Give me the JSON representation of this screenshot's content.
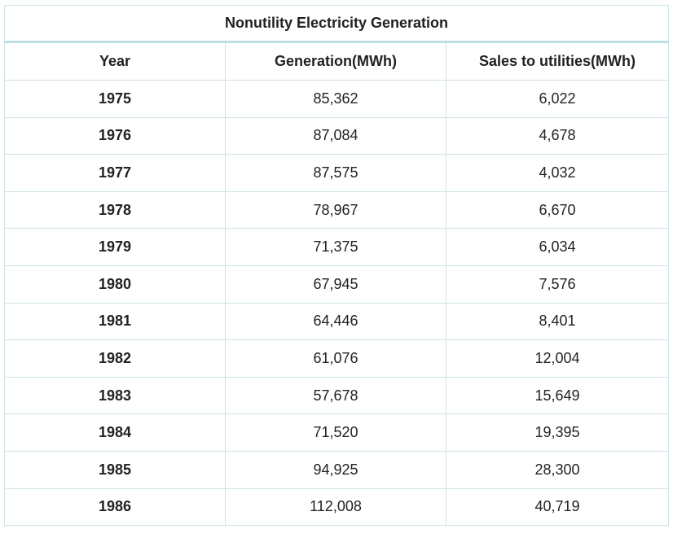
{
  "chart_data": {
    "type": "table",
    "title": "Nonutility Electricity Generation",
    "columns": [
      "Year",
      "Generation(MWh)",
      "Sales to utilities(MWh)"
    ],
    "rows": [
      [
        "1975",
        "85,362",
        "6,022"
      ],
      [
        "1976",
        "87,084",
        "4,678"
      ],
      [
        "1977",
        "87,575",
        "4,032"
      ],
      [
        "1978",
        "78,967",
        "6,670"
      ],
      [
        "1979",
        "71,375",
        "6,034"
      ],
      [
        "1980",
        "67,945",
        "7,576"
      ],
      [
        "1981",
        "64,446",
        "8,401"
      ],
      [
        "1982",
        "61,076",
        "12,004"
      ],
      [
        "1983",
        "57,678",
        "15,649"
      ],
      [
        "1984",
        "71,520",
        "19,395"
      ],
      [
        "1985",
        "94,925",
        "28,300"
      ],
      [
        "1986",
        "112,008",
        "40,719"
      ]
    ]
  }
}
